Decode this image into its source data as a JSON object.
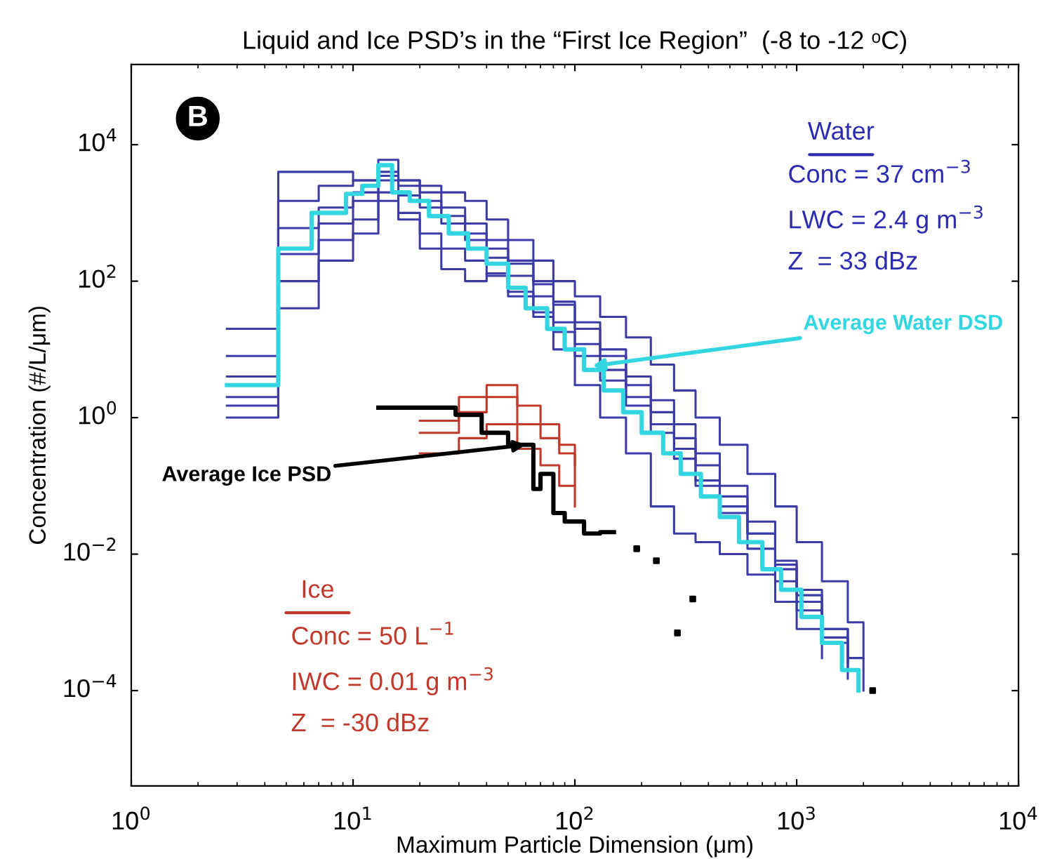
{
  "chart_data": {
    "type": "step",
    "title": "Liquid and Ice PSD’s in the “First Ice Region”  (-8 to -12 ᵒC)",
    "xlabel": "Maximum Particle Dimension (μm)",
    "ylabel": "Concentration (#/L/μm)",
    "log": "xy",
    "grid": false,
    "marker": "none",
    "line_style": "solid",
    "xlim": [
      1,
      10000
    ],
    "ylim": [
      4e-06,
      150000.0
    ],
    "xticks": [
      {
        "value": 1,
        "label": "10$^{0}$"
      },
      {
        "value": 10,
        "label": "10$^{1}$"
      },
      {
        "value": 100,
        "label": "10$^{2}$"
      },
      {
        "value": 1000,
        "label": "10$^{3}$"
      },
      {
        "value": 10000,
        "label": "10$^{4}$"
      }
    ],
    "yticks": [
      {
        "value": 0.0001,
        "label": "10$^{−4}$"
      },
      {
        "value": 0.01,
        "label": "10$^{−2}$"
      },
      {
        "value": 1,
        "label": "10$^{0}$"
      },
      {
        "value": 100,
        "label": "10$^{2}$"
      },
      {
        "value": 10000,
        "label": "10$^{4}$"
      }
    ],
    "series": [
      {
        "color": "#3b3ba8",
        "x": [
          2.7,
          4.6,
          7,
          10,
          13,
          16,
          20,
          25,
          32,
          40,
          50,
          65,
          80,
          100,
          130,
          170,
          220,
          280,
          350,
          450,
          600,
          800,
          1000,
          1300,
          1700,
          2000
        ],
        "values": [
          8,
          1500,
          2500,
          3000,
          6000,
          3000,
          2000,
          1200,
          700,
          400,
          200,
          100,
          50,
          25,
          10,
          4,
          1.8,
          0.8,
          0.3,
          0.1,
          0.03,
          0.008,
          0.003,
          0.0008,
          0.0003,
          0.0001
        ]
      },
      {
        "color": "#3b3ba8",
        "x": [
          2.7,
          4.6,
          7,
          10,
          13,
          16,
          20,
          25,
          32,
          40,
          50,
          65,
          80,
          100,
          130,
          170,
          220,
          280,
          350,
          450,
          600,
          800,
          1000,
          1300,
          1700
        ],
        "values": [
          1,
          40,
          200,
          500,
          1500,
          800,
          500,
          300,
          200,
          120,
          70,
          35,
          18,
          8,
          3.5,
          1.5,
          0.6,
          0.25,
          0.1,
          0.04,
          0.012,
          0.004,
          0.0015,
          0.0005,
          0.00015
        ]
      },
      {
        "color": "#3b3ba8",
        "x": [
          2.7,
          4.6,
          7,
          10,
          13,
          16,
          20,
          25,
          32,
          40,
          50,
          65,
          80,
          100,
          130,
          170,
          220,
          280,
          350,
          450,
          600,
          800,
          1000,
          1300
        ],
        "values": [
          2,
          100,
          400,
          800,
          2000,
          1000,
          300,
          150,
          100,
          130,
          60,
          30,
          10,
          3,
          1,
          0.3,
          0.05,
          0.02,
          0.015,
          0.01,
          0.005,
          0.002,
          0.0008,
          0.0003
        ]
      },
      {
        "color": "#3b3ba8",
        "x": [
          2.7,
          4.6,
          7,
          10,
          13,
          16,
          20,
          25,
          32,
          40,
          50,
          65,
          80,
          100,
          130,
          170,
          220,
          280,
          350,
          450,
          600,
          800,
          1000,
          1300,
          1700,
          2000
        ],
        "values": [
          20,
          4000,
          4000,
          3000,
          3500,
          3000,
          2500,
          2000,
          1500,
          800,
          400,
          200,
          100,
          60,
          30,
          15,
          6,
          2.5,
          1,
          0.4,
          0.15,
          0.05,
          0.015,
          0.004,
          0.001,
          0.0003
        ]
      },
      {
        "color": "#3b3ba8",
        "x": [
          2.7,
          4.6,
          7,
          10,
          13,
          16,
          20,
          25,
          32,
          40,
          50,
          65,
          80,
          100,
          130,
          170,
          220,
          280,
          350,
          450,
          600,
          800,
          1000,
          1300,
          1700
        ],
        "values": [
          4,
          600,
          1200,
          2000,
          4000,
          2500,
          1500,
          900,
          500,
          300,
          180,
          90,
          45,
          20,
          8,
          3,
          1.2,
          0.5,
          0.2,
          0.07,
          0.02,
          0.006,
          0.002,
          0.0006,
          0.0002
        ]
      },
      {
        "color": "#3b3ba8",
        "x": [
          2.7,
          4.6,
          7,
          10,
          13,
          16,
          20,
          25,
          32,
          40,
          50,
          65,
          80,
          100,
          130,
          170,
          220,
          280,
          350,
          450,
          600,
          800,
          1000,
          1300,
          1700
        ],
        "values": [
          1.5,
          250,
          700,
          1500,
          3000,
          1800,
          1200,
          700,
          400,
          220,
          120,
          60,
          25,
          12,
          5,
          2,
          0.8,
          0.35,
          0.12,
          0.05,
          0.02,
          0.007,
          0.0025,
          0.0008,
          0.00025
        ]
      },
      {
        "color": "#c0392b",
        "x": [
          20,
          30,
          40,
          55,
          70,
          85,
          100
        ],
        "values": [
          0.9,
          2,
          3,
          1.5,
          0.8,
          0.4,
          0.2
        ]
      },
      {
        "color": "#c0392b",
        "x": [
          20,
          30,
          40,
          55,
          70,
          85,
          100
        ],
        "values": [
          0.6,
          1.2,
          2,
          0.8,
          0.5,
          0.3,
          0.1
        ]
      },
      {
        "color": "#c0392b",
        "x": [
          20,
          30,
          40,
          55,
          70,
          85,
          100
        ],
        "values": [
          0.3,
          0.5,
          0.8,
          0.35,
          0.2,
          0.1,
          0.05
        ]
      },
      {
        "color": "#33d6e0",
        "x": [
          2.7,
          4.6,
          6.5,
          9.3,
          11,
          13,
          15,
          18,
          22,
          27,
          33,
          40,
          50,
          60,
          75,
          90,
          110,
          135,
          165,
          200,
          250,
          300,
          370,
          450,
          550,
          700,
          850,
          1050,
          1300,
          1600,
          1900
        ],
        "values": [
          3,
          300,
          1000,
          1900,
          2500,
          5000,
          2000,
          1500,
          900,
          500,
          300,
          180,
          80,
          40,
          20,
          10,
          5,
          2.5,
          1.2,
          0.6,
          0.3,
          0.15,
          0.07,
          0.035,
          0.015,
          0.006,
          0.003,
          0.0012,
          0.0005,
          0.0002,
          0.0001
        ]
      },
      {
        "color": "#000000",
        "x": [
          13,
          29,
          38,
          50,
          65,
          70,
          80,
          90,
          110,
          130,
          150
        ],
        "values": [
          1.4,
          1.1,
          0.6,
          0.4,
          0.09,
          0.15,
          0.04,
          0.03,
          0.02,
          0.021,
          0.021
        ]
      },
      {
        "type": "scatter",
        "marker": "square",
        "color": "#000000",
        "x": [
          190,
          233,
          290,
          340,
          2200
        ],
        "values": [
          0.012,
          0.008,
          0.0007,
          0.0022,
          0.0001
        ]
      }
    ],
    "annotations": [
      "B",
      "Water",
      "Conc = 37 cm$^{−3}$",
      "LWC = 2.4 g m$^{−3}$",
      "Z  = 33 dBz",
      {
        "text": "Average Water DSD",
        "x": 120,
        "y": 5.7
      },
      {
        "text": "Average Ice PSD",
        "x": 60,
        "y": 0.4
      },
      "Ice",
      "Conc = 50 L$^{−1}$",
      "IWC = 0.01 g m$^{−3}$",
      "Z  = -30 dBz"
    ]
  }
}
